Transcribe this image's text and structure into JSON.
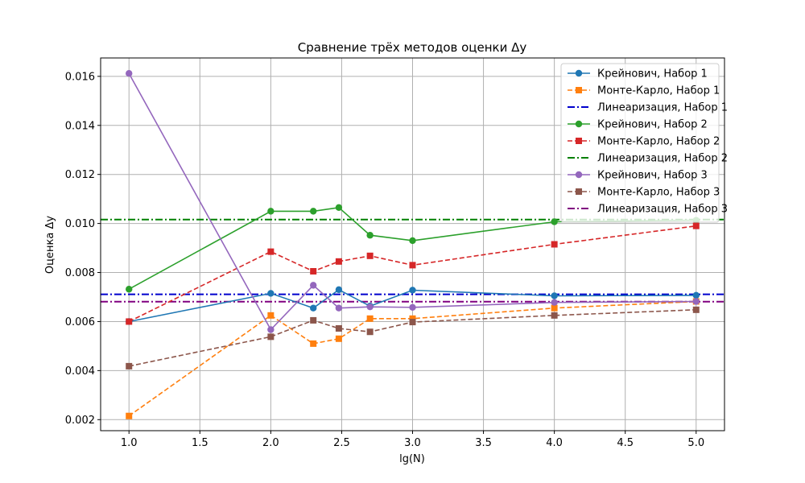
{
  "chart_data": {
    "type": "line",
    "title": "Сравнение трёх методов оценки Δy",
    "xlabel": "lg(N)",
    "ylabel": "Оценка Δy",
    "xlim": [
      0.8,
      5.2
    ],
    "ylim": [
      0.00155,
      0.01675
    ],
    "xticks": [
      1.0,
      1.5,
      2.0,
      2.5,
      3.0,
      3.5,
      4.0,
      4.5,
      5.0
    ],
    "xtick_labels": [
      "1.0",
      "1.5",
      "2.0",
      "2.5",
      "3.0",
      "3.5",
      "4.0",
      "4.5",
      "5.0"
    ],
    "yticks": [
      0.002,
      0.004,
      0.006,
      0.008,
      0.01,
      0.012,
      0.014,
      0.016
    ],
    "ytick_labels": [
      "0.002",
      "0.004",
      "0.006",
      "0.008",
      "0.010",
      "0.012",
      "0.014",
      "0.016"
    ],
    "grid": true,
    "legend_position": "top-right",
    "x": [
      1.0,
      2.0,
      2.3,
      2.48,
      2.7,
      3.0,
      4.0,
      5.0
    ],
    "series": [
      {
        "name": "Крейнович, Набор 1",
        "kind": "line",
        "color": "#1f77b4",
        "style": "solid",
        "marker": "circle",
        "values": [
          0.006,
          0.00715,
          0.00655,
          0.0073,
          0.00663,
          0.00728,
          0.00705,
          0.00707
        ]
      },
      {
        "name": "Монте-Карло, Набор 1",
        "kind": "line",
        "color": "#ff7f0e",
        "style": "dashed",
        "marker": "square",
        "values": [
          0.00215,
          0.00625,
          0.0051,
          0.0053,
          0.00612,
          0.00612,
          0.00655,
          0.00682
        ]
      },
      {
        "name": "Линеаризация, Набор 1",
        "kind": "hline",
        "color": "#0000cd",
        "style": "dashdot",
        "marker": "none",
        "value": 0.00711
      },
      {
        "name": "Крейнович, Набор 2",
        "kind": "line",
        "color": "#2ca02c",
        "style": "solid",
        "marker": "circle",
        "values": [
          0.00732,
          0.0105,
          0.0105,
          0.01065,
          0.00952,
          0.0093,
          0.01007,
          0.01013
        ]
      },
      {
        "name": "Монте-Карло, Набор 2",
        "kind": "line",
        "color": "#d62728",
        "style": "dashed",
        "marker": "square",
        "values": [
          0.006,
          0.00885,
          0.00805,
          0.00845,
          0.00868,
          0.0083,
          0.00915,
          0.0099
        ]
      },
      {
        "name": "Линеаризация, Набор 2",
        "kind": "hline",
        "color": "#008000",
        "style": "dashdot",
        "marker": "none",
        "value": 0.01016
      },
      {
        "name": "Крейнович, Набор 3",
        "kind": "line",
        "color": "#9467bd",
        "style": "solid",
        "marker": "circle",
        "values": [
          0.01612,
          0.00567,
          0.00748,
          0.00655,
          0.0066,
          0.00658,
          0.00678,
          0.00682
        ]
      },
      {
        "name": "Монте-Карло, Набор 3",
        "kind": "line",
        "color": "#8c564b",
        "style": "dashed",
        "marker": "square",
        "values": [
          0.00418,
          0.00538,
          0.00605,
          0.00572,
          0.00558,
          0.00598,
          0.00625,
          0.00648
        ]
      },
      {
        "name": "Линеаризация, Набор 3",
        "kind": "hline",
        "color": "#800080",
        "style": "dashdot",
        "marker": "none",
        "value": 0.00681
      }
    ]
  }
}
